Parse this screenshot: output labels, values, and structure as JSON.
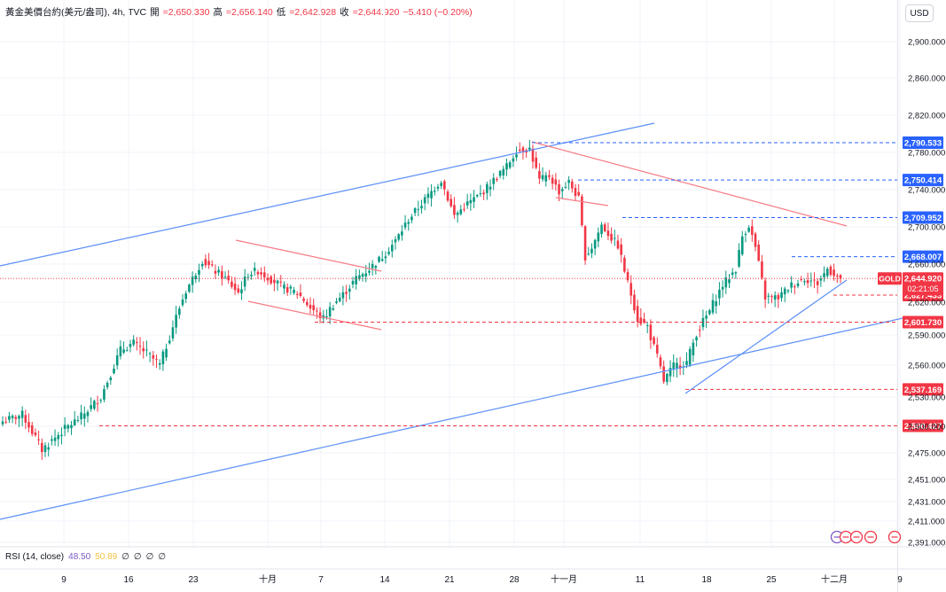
{
  "header": {
    "symbol": "黃金美價台約(美元/盎司), 4h, TVC",
    "open_label": "開",
    "open": "=2,650.330",
    "high_label": "高",
    "high": "=2,656.140",
    "low_label": "低",
    "low": "=2,642.928",
    "close_label": "收",
    "close": "=2,644.920",
    "change": "−5.410 (−0.20%)"
  },
  "currency_button": "USD",
  "rsi": {
    "label": "RSI (14, close)",
    "value": "48.50",
    "ma": "50.89",
    "extras": [
      "∅",
      "∅",
      "∅",
      "∅"
    ]
  },
  "price_tag": {
    "symbol": "GOLD",
    "price": "2,644.920",
    "countdown": "02:21:05"
  },
  "colors": {
    "up": "#089981",
    "down": "#f23645",
    "trend_blue": "#5b8ff9",
    "trend_red": "#f77b85",
    "level_blue": "#2962ff",
    "level_red": "#f23645"
  },
  "chart_data": {
    "type": "candlestick",
    "title": "黃金美價台約(美元/盎司), 4h, TVC",
    "timeframe": "4h",
    "x_ticks": [
      "9",
      "16",
      "23",
      "十月",
      "7",
      "14",
      "21",
      "28",
      "十一月",
      "11",
      "18",
      "25",
      "十二月",
      "9"
    ],
    "y_ticks": [
      2900,
      2860,
      2820,
      2780,
      2740,
      2700,
      2660,
      2620,
      2590,
      2560,
      2530,
      2500,
      2475,
      2451,
      2431,
      2411,
      2391
    ],
    "ylim": [
      2391,
      2915
    ],
    "close_path": [
      [
        0,
        2505
      ],
      [
        6,
        2512
      ],
      [
        12,
        2478
      ],
      [
        18,
        2495
      ],
      [
        24,
        2510
      ],
      [
        30,
        2530
      ],
      [
        36,
        2575
      ],
      [
        40,
        2582
      ],
      [
        44,
        2572
      ],
      [
        48,
        2560
      ],
      [
        52,
        2598
      ],
      [
        56,
        2632
      ],
      [
        61,
        2664
      ],
      [
        64,
        2655
      ],
      [
        68,
        2645
      ],
      [
        72,
        2630
      ],
      [
        75,
        2650
      ],
      [
        78,
        2653
      ],
      [
        82,
        2644
      ],
      [
        86,
        2635
      ],
      [
        90,
        2630
      ],
      [
        94,
        2615
      ],
      [
        98,
        2605
      ],
      [
        101,
        2618
      ],
      [
        104,
        2628
      ],
      [
        108,
        2645
      ],
      [
        112,
        2655
      ],
      [
        116,
        2668
      ],
      [
        120,
        2685
      ],
      [
        124,
        2708
      ],
      [
        128,
        2725
      ],
      [
        132,
        2742
      ],
      [
        134,
        2750
      ],
      [
        138,
        2712
      ],
      [
        142,
        2725
      ],
      [
        146,
        2735
      ],
      [
        150,
        2750
      ],
      [
        154,
        2765
      ],
      [
        157,
        2782
      ],
      [
        161,
        2784
      ],
      [
        164,
        2750
      ],
      [
        167,
        2755
      ],
      [
        170,
        2738
      ],
      [
        173,
        2748
      ],
      [
        176,
        2730
      ],
      [
        178,
        2668
      ],
      [
        180,
        2678
      ],
      [
        183,
        2702
      ],
      [
        186,
        2688
      ],
      [
        188,
        2680
      ],
      [
        191,
        2640
      ],
      [
        194,
        2605
      ],
      [
        197,
        2598
      ],
      [
        200,
        2568
      ],
      [
        202,
        2545
      ],
      [
        205,
        2559
      ],
      [
        209,
        2563
      ],
      [
        212,
        2592
      ],
      [
        216,
        2612
      ],
      [
        220,
        2638
      ],
      [
        224,
        2655
      ],
      [
        226,
        2690
      ],
      [
        228,
        2702
      ],
      [
        230,
        2678
      ],
      [
        233,
        2625
      ],
      [
        237,
        2625
      ],
      [
        241,
        2638
      ],
      [
        245,
        2645
      ],
      [
        249,
        2640
      ],
      [
        252,
        2655
      ],
      [
        254,
        2650
      ],
      [
        256,
        2645
      ]
    ],
    "horizontal_levels": [
      {
        "price": 2790.533,
        "label": "2,790.533",
        "color": "blue"
      },
      {
        "price": 2750.414,
        "label": "2,750.414",
        "color": "blue"
      },
      {
        "price": 2709.952,
        "label": "2,709.952",
        "color": "blue"
      },
      {
        "price": 2668.007,
        "label": "2,668.007",
        "color": "blue"
      },
      {
        "price": 2627.433,
        "label": "2,627.433",
        "color": "red"
      },
      {
        "price": 2601.73,
        "label": "2,601.730",
        "color": "red"
      },
      {
        "price": 2537.169,
        "label": "2,537.169",
        "color": "red"
      },
      {
        "price": 2500.427,
        "label": "2,500.427",
        "color": "red"
      }
    ],
    "last_price": 2644.92
  }
}
